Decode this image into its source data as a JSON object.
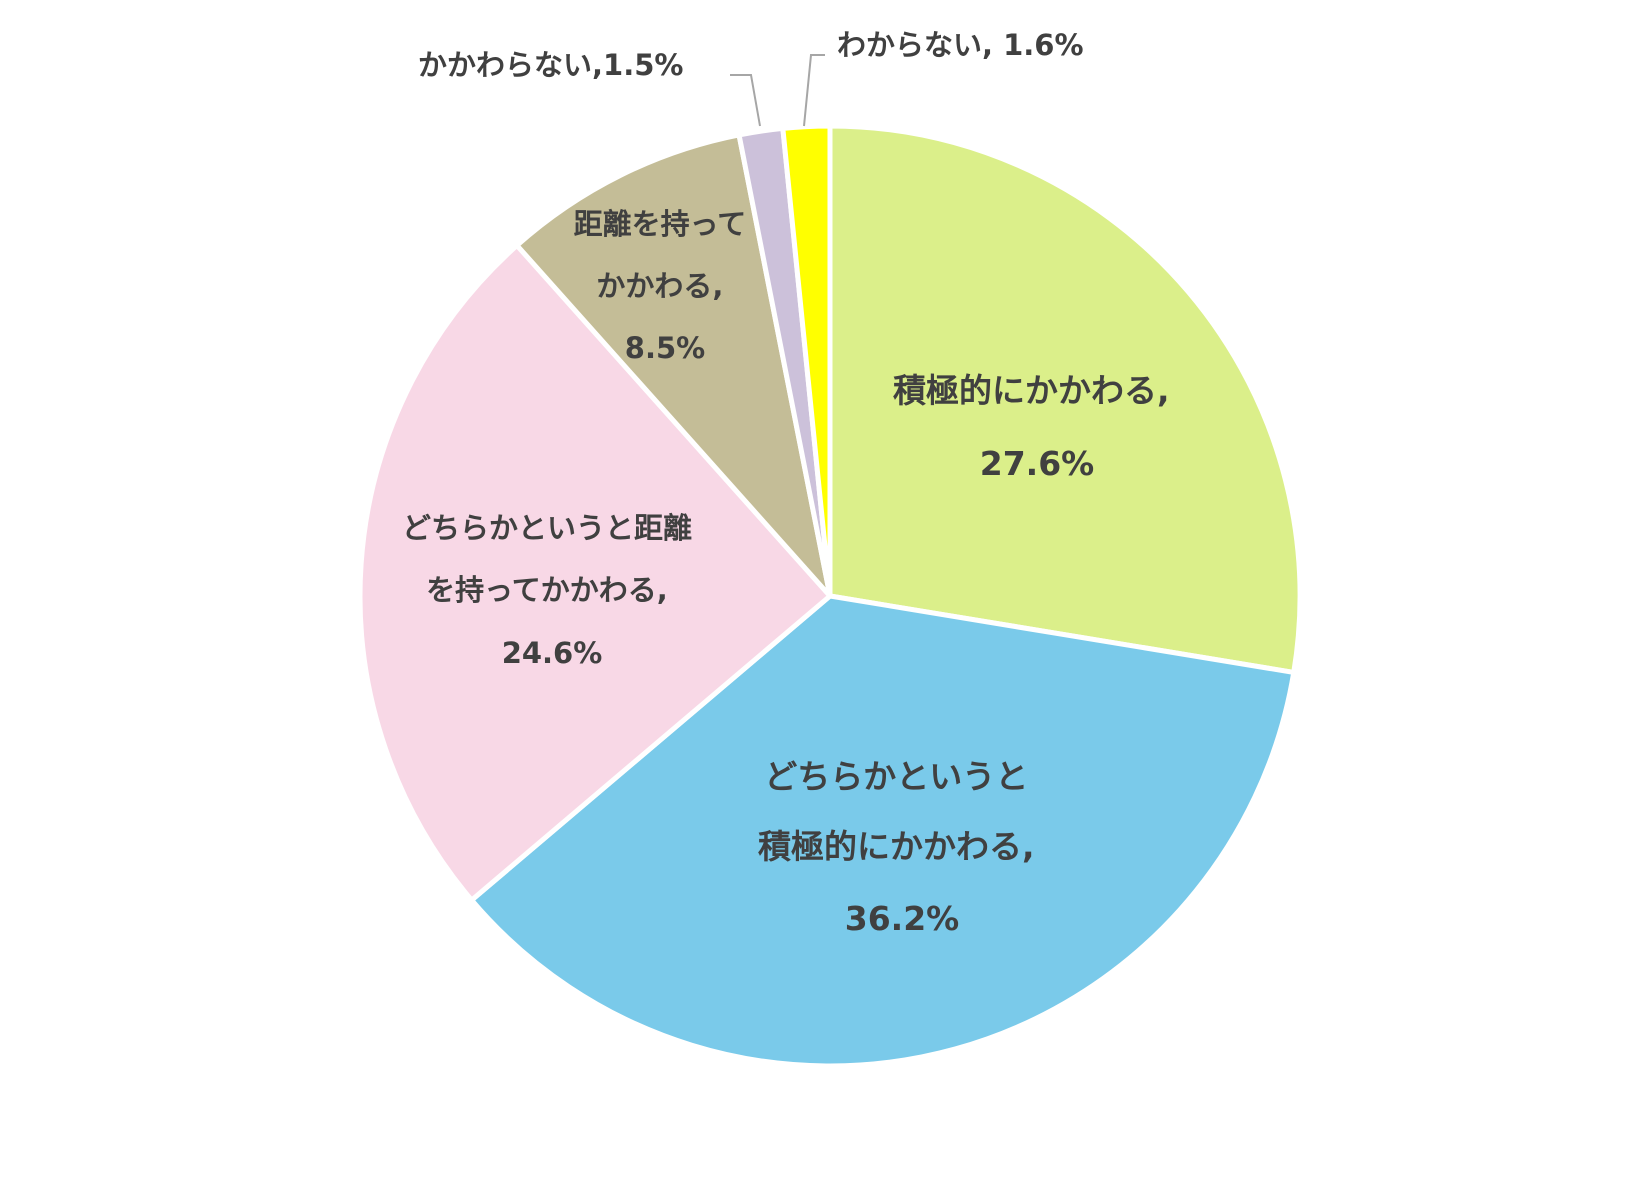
{
  "chart_data": {
    "type": "pie",
    "slices": [
      {
        "label": "積極的にかかわる",
        "value": 27.6,
        "text": "27.6%",
        "color": "#dbef8a"
      },
      {
        "label": "どちらかというと積極的にかかわる",
        "value": 36.2,
        "text": "36.2%",
        "color": "#7acaea"
      },
      {
        "label": "どちらかというと距離を持ってかかわる",
        "value": 24.6,
        "text": "24.6%",
        "color": "#f8d8e6"
      },
      {
        "label": "距離を持ってかかわる",
        "value": 8.5,
        "text": "8.5%",
        "color": "#c4bd97"
      },
      {
        "label": "かかわらない",
        "value": 1.5,
        "text": "1.5%",
        "color": "#ccc1da"
      },
      {
        "label": "わからない",
        "value": 1.6,
        "text": "1.6%",
        "color": "#ffff00"
      }
    ],
    "data_labels": [
      {
        "lines": [
          "積極的にかかわる,",
          "27.6%"
        ]
      },
      {
        "lines": [
          "どちらかというと",
          "積極的にかかわる,",
          "36.2%"
        ]
      },
      {
        "lines": [
          "どちらかというと距離",
          "を持ってかかわる,",
          "24.6%"
        ]
      },
      {
        "lines": [
          "距離を持って",
          "かかわる,",
          "8.5%"
        ]
      },
      {
        "lines": [
          "かかわらない,1.5%"
        ]
      },
      {
        "lines": [
          "わからない, 1.6%"
        ]
      }
    ],
    "start_angle_deg": 0,
    "direction": "clockwise"
  }
}
